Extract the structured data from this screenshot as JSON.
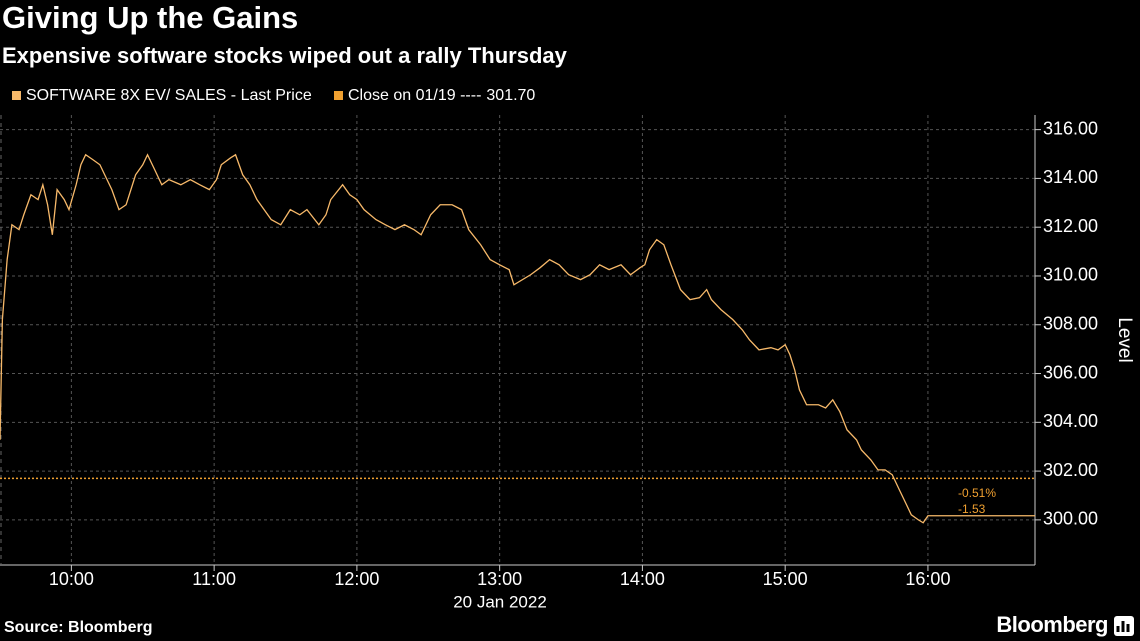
{
  "chart_data": {
    "type": "line",
    "title": "Giving Up the Gains",
    "subtitle": "Expensive software stocks wiped out a rally Thursday",
    "x_label": "20 Jan 2022",
    "y_label": "Level",
    "source": "Source: Bloomberg",
    "brand": "Bloomberg",
    "grid": true,
    "xlim": [
      570,
      1005
    ],
    "xticks": [
      {
        "value": 600,
        "label": "10:00"
      },
      {
        "value": 660,
        "label": "11:00"
      },
      {
        "value": 720,
        "label": "12:00"
      },
      {
        "value": 780,
        "label": "13:00"
      },
      {
        "value": 840,
        "label": "14:00"
      },
      {
        "value": 900,
        "label": "15:00"
      },
      {
        "value": 960,
        "label": "16:00"
      }
    ],
    "ylim": [
      298.15,
      316.6
    ],
    "yticks": [
      {
        "value": 300,
        "label": "300.00"
      },
      {
        "value": 302,
        "label": "302.00"
      },
      {
        "value": 304,
        "label": "304.00"
      },
      {
        "value": 306,
        "label": "306.00"
      },
      {
        "value": 308,
        "label": "308.00"
      },
      {
        "value": 310,
        "label": "310.00"
      },
      {
        "value": 312,
        "label": "312.00"
      },
      {
        "value": 314,
        "label": "314.00"
      },
      {
        "value": 316,
        "label": "316.00"
      }
    ],
    "x": [
      570,
      571,
      573,
      575,
      578,
      580,
      583,
      586,
      588,
      590,
      592,
      594,
      597,
      599,
      602,
      604,
      606,
      609,
      612,
      614,
      617,
      620,
      623,
      627,
      630,
      632,
      635,
      638,
      641,
      646,
      650,
      654,
      658,
      661,
      663,
      667,
      669,
      672,
      675,
      678,
      681,
      684,
      688,
      692,
      696,
      699,
      704,
      707,
      709,
      714,
      717,
      720,
      723,
      728,
      732,
      736,
      740,
      744,
      747,
      751,
      755,
      760,
      764,
      767,
      772,
      776,
      780,
      784,
      786,
      793,
      797,
      801,
      805,
      809,
      814,
      818,
      822,
      826,
      831,
      835,
      839,
      841,
      843,
      846,
      849,
      852,
      856,
      860,
      864,
      867,
      869,
      873,
      878,
      882,
      885,
      889,
      894,
      897,
      900,
      902,
      904,
      906,
      909,
      914,
      917,
      920,
      923,
      926,
      930,
      932,
      936,
      939,
      942,
      945,
      948,
      951,
      953,
      956,
      958,
      960,
      1005
    ],
    "series": [
      {
        "name": "SOFTWARE 8X EV/ SALES - Last Price",
        "color": "#f7b96a",
        "values": [
          303.28,
          308.21,
          310.67,
          312.1,
          311.9,
          312.51,
          313.33,
          313.13,
          313.74,
          312.92,
          311.69,
          313.54,
          313.13,
          312.72,
          313.74,
          314.56,
          314.97,
          314.77,
          314.56,
          314.15,
          313.54,
          312.72,
          312.92,
          314.15,
          314.56,
          314.97,
          314.36,
          313.74,
          313.95,
          313.74,
          313.95,
          313.74,
          313.54,
          313.95,
          314.56,
          314.85,
          314.97,
          314.15,
          313.74,
          313.13,
          312.72,
          312.31,
          312.1,
          312.72,
          312.51,
          312.72,
          312.1,
          312.51,
          313.13,
          313.74,
          313.33,
          313.13,
          312.72,
          312.31,
          312.1,
          311.9,
          312.1,
          311.9,
          311.69,
          312.51,
          312.92,
          312.92,
          312.72,
          311.9,
          311.28,
          310.67,
          310.46,
          310.26,
          309.64,
          310.05,
          310.34,
          310.67,
          310.46,
          310.05,
          309.85,
          310.05,
          310.46,
          310.26,
          310.46,
          310.05,
          310.34,
          310.46,
          311.08,
          311.49,
          311.28,
          310.46,
          309.44,
          309.03,
          309.11,
          309.44,
          309.03,
          308.62,
          308.21,
          307.79,
          307.38,
          306.97,
          307.06,
          306.97,
          307.18,
          306.77,
          306.15,
          305.33,
          304.72,
          304.72,
          304.59,
          304.92,
          304.43,
          303.69,
          303.28,
          302.87,
          302.46,
          302.05,
          302.05,
          301.85,
          301.23,
          300.62,
          300.21,
          300,
          299.88,
          300.17,
          300.17
        ]
      }
    ],
    "reference_line": {
      "name": "Close on 01/19 ----",
      "value": 301.7,
      "value_label": "301.70",
      "color": "#f0a030"
    },
    "annotations": [
      {
        "text": "-0.51%"
      },
      {
        "text": "-1.53"
      }
    ]
  }
}
